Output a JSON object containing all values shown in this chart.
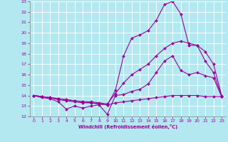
{
  "xlabel": "Windchill (Refroidissement éolien,°C)",
  "xlim": [
    -0.5,
    23.5
  ],
  "ylim": [
    12,
    23
  ],
  "yticks": [
    12,
    13,
    14,
    15,
    16,
    17,
    18,
    19,
    20,
    21,
    22,
    23
  ],
  "xticks": [
    0,
    1,
    2,
    3,
    4,
    5,
    6,
    7,
    8,
    9,
    10,
    11,
    12,
    13,
    14,
    15,
    16,
    17,
    18,
    19,
    20,
    21,
    22,
    23
  ],
  "background_color": "#b3e8f0",
  "line_color": "#990099",
  "grid_color": "#ffffff",
  "lines": [
    {
      "x": [
        0,
        1,
        2,
        3,
        4,
        5,
        6,
        7,
        8,
        9,
        10,
        11,
        12,
        13,
        14,
        15,
        16,
        17,
        18,
        19,
        20,
        21,
        22,
        23
      ],
      "y": [
        14.0,
        13.9,
        13.8,
        13.6,
        13.5,
        13.4,
        13.3,
        13.3,
        13.2,
        13.1,
        13.3,
        13.4,
        13.5,
        13.6,
        13.7,
        13.8,
        13.9,
        14.0,
        14.0,
        14.0,
        14.0,
        13.9,
        13.9,
        13.9
      ],
      "marker": "D",
      "markersize": 2.0
    },
    {
      "x": [
        0,
        1,
        2,
        3,
        4,
        5,
        6,
        7,
        8,
        9,
        10,
        11,
        12,
        13,
        14,
        15,
        16,
        17,
        18,
        19,
        20,
        21,
        22,
        23
      ],
      "y": [
        14.0,
        13.8,
        13.7,
        13.4,
        12.7,
        13.0,
        12.8,
        13.0,
        13.1,
        12.2,
        14.0,
        14.1,
        14.4,
        14.6,
        15.1,
        16.2,
        17.3,
        17.8,
        16.4,
        16.0,
        16.2,
        15.9,
        15.7,
        13.9
      ],
      "marker": "D",
      "markersize": 2.0
    },
    {
      "x": [
        0,
        1,
        2,
        3,
        4,
        5,
        6,
        7,
        8,
        9,
        10,
        11,
        12,
        13,
        14,
        15,
        16,
        17,
        18,
        19,
        20,
        21,
        22,
        23
      ],
      "y": [
        14.0,
        13.9,
        13.8,
        13.7,
        13.6,
        13.5,
        13.4,
        13.3,
        13.2,
        13.1,
        14.5,
        17.8,
        19.5,
        19.8,
        20.2,
        21.2,
        22.7,
        23.0,
        21.8,
        18.8,
        18.8,
        17.3,
        16.2,
        13.9
      ],
      "marker": "D",
      "markersize": 2.0
    },
    {
      "x": [
        0,
        1,
        2,
        3,
        4,
        5,
        6,
        7,
        8,
        9,
        10,
        11,
        12,
        13,
        14,
        15,
        16,
        17,
        18,
        19,
        20,
        21,
        22,
        23
      ],
      "y": [
        14.0,
        13.9,
        13.8,
        13.7,
        13.6,
        13.5,
        13.4,
        13.4,
        13.3,
        13.2,
        14.2,
        15.2,
        16.0,
        16.5,
        17.0,
        17.8,
        18.5,
        19.0,
        19.2,
        19.0,
        18.8,
        18.2,
        17.0,
        14.0
      ],
      "marker": "D",
      "markersize": 2.0
    }
  ]
}
